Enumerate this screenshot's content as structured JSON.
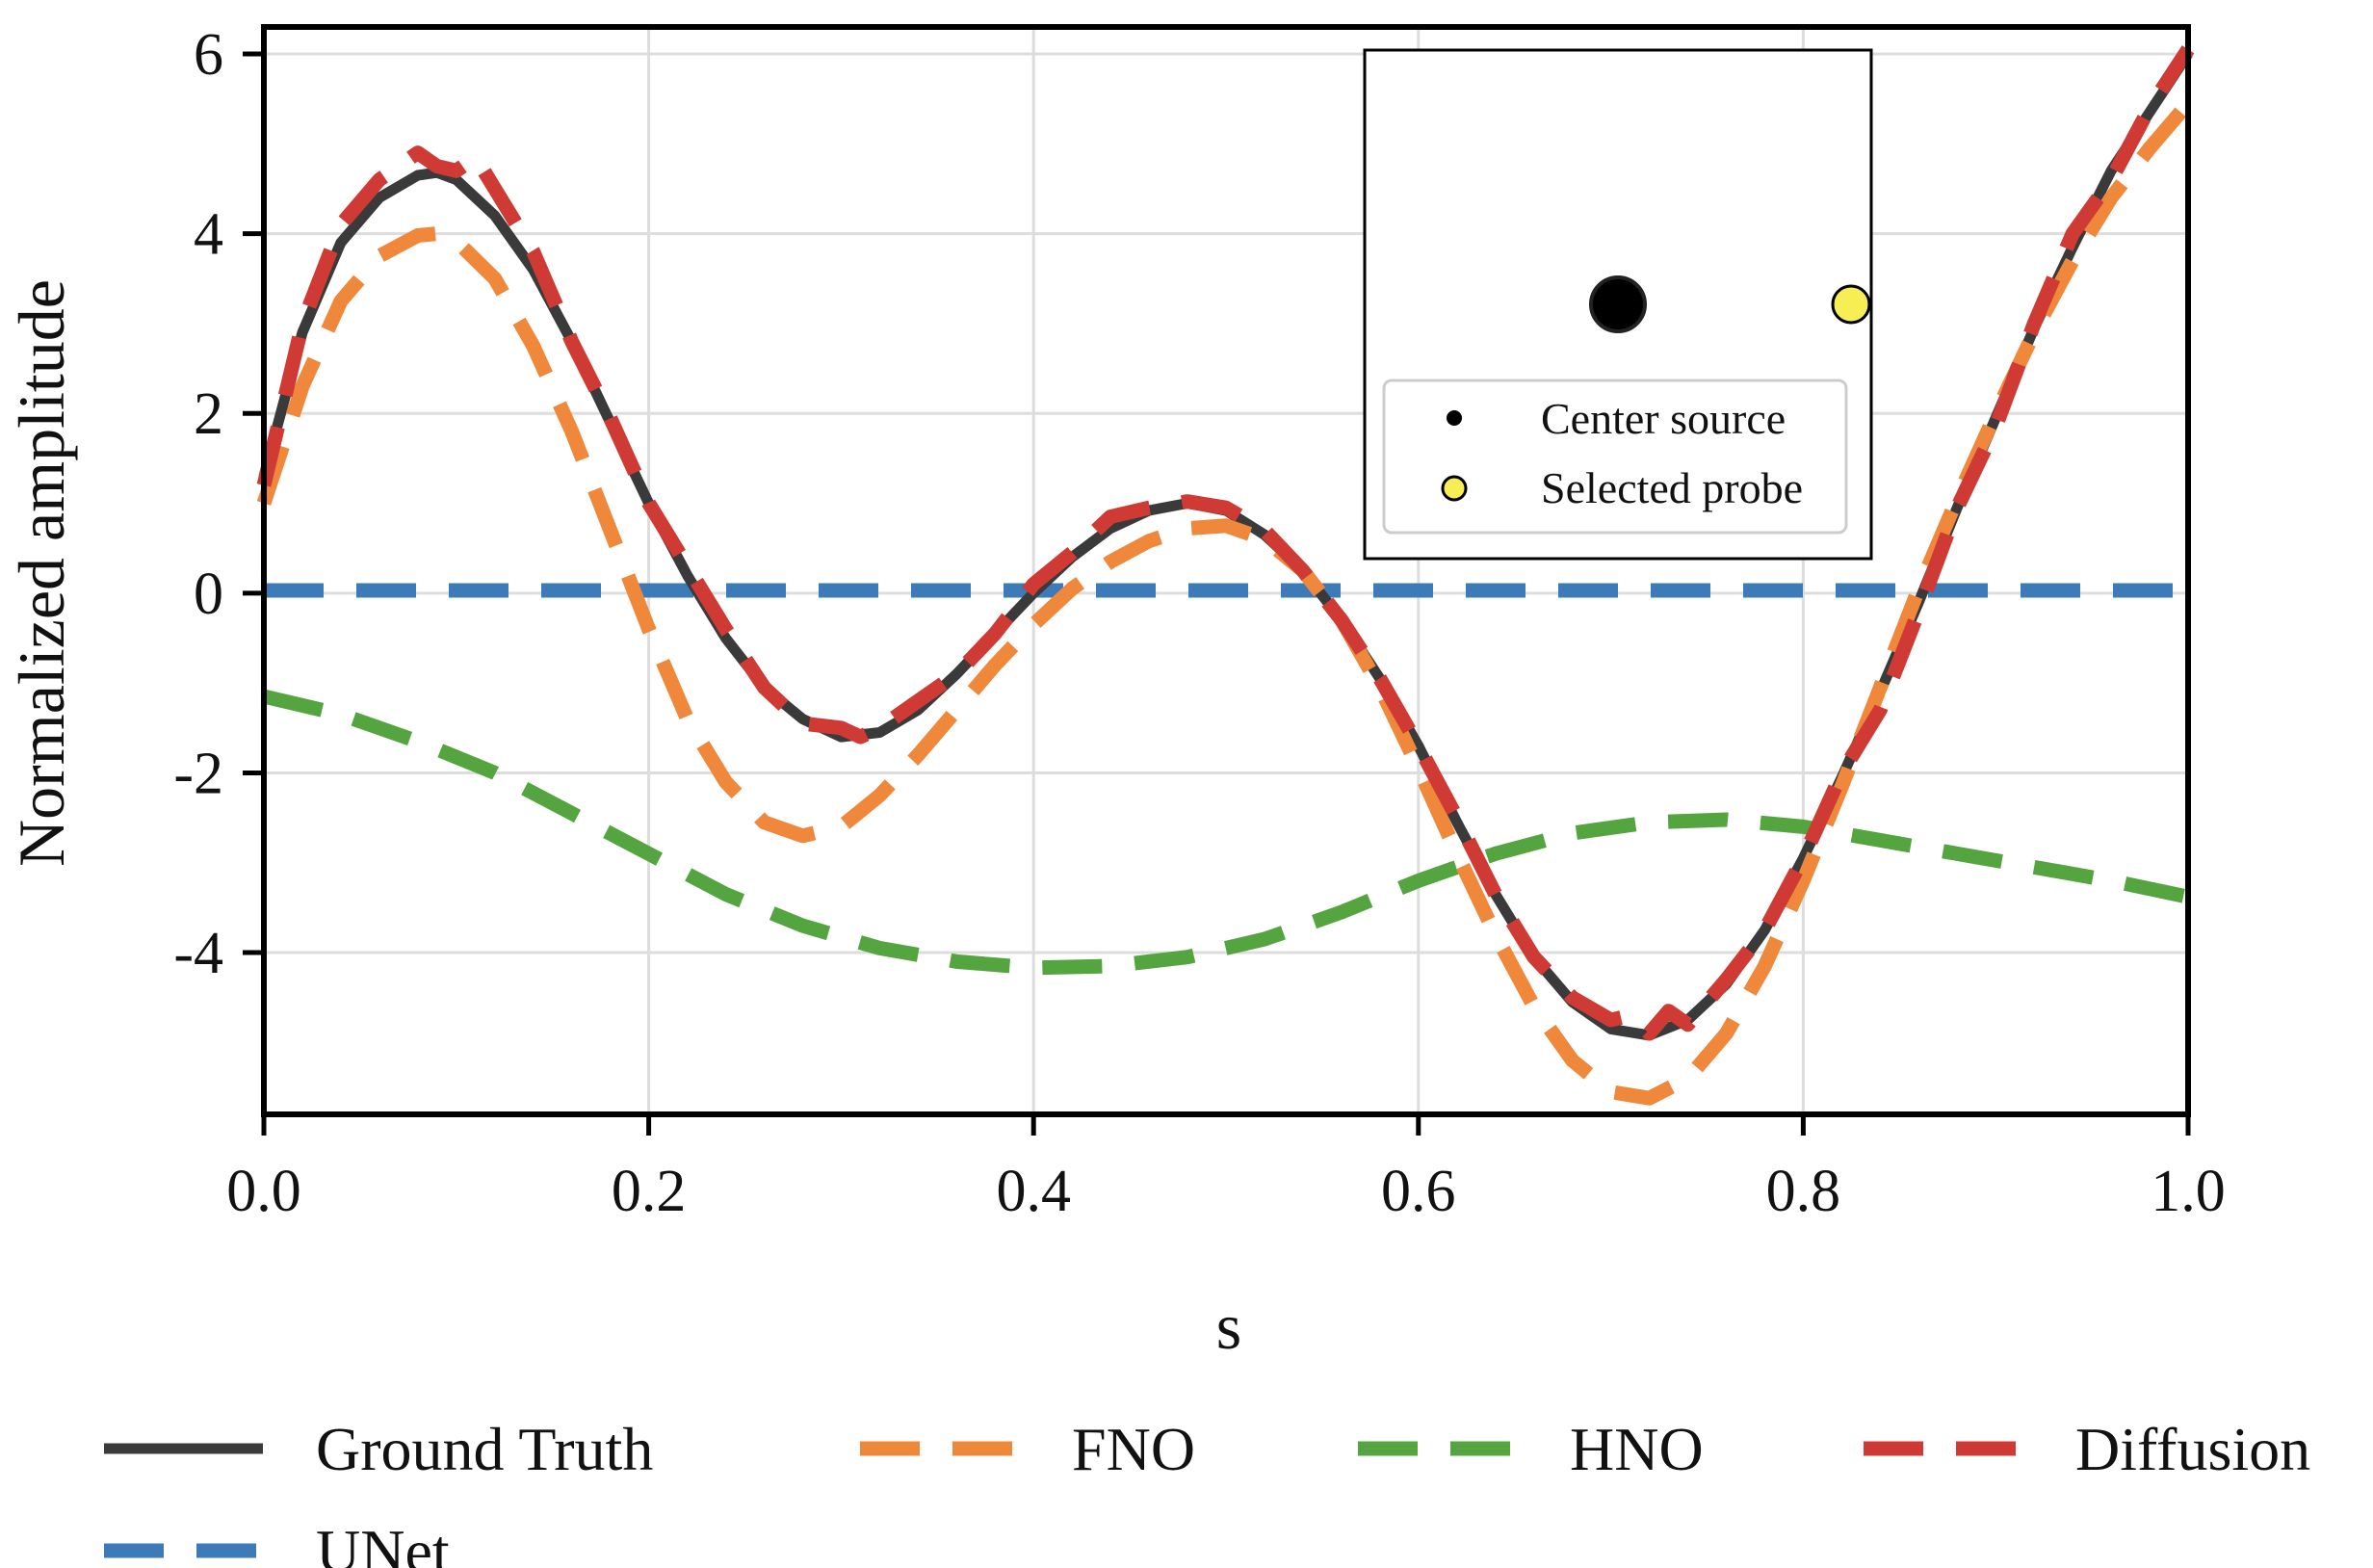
{
  "chart_data": {
    "type": "line",
    "title": "",
    "xlabel": "s",
    "ylabel": "Normalized amplitude",
    "xlim": [
      0.0,
      1.0
    ],
    "ylim": [
      -5.8,
      6.3
    ],
    "xticks": [
      0.0,
      0.2,
      0.4,
      0.6,
      0.8,
      1.0
    ],
    "xtick_labels": [
      "0.0",
      "0.2",
      "0.4",
      "0.6",
      "0.8",
      "1.0"
    ],
    "yticks": [
      -4,
      -2,
      0,
      2,
      4,
      6
    ],
    "ytick_labels": [
      "-4",
      "-2",
      "0",
      "2",
      "4",
      "6"
    ],
    "grid": true,
    "legend_position": "bottom",
    "series": [
      {
        "name": "Ground Truth",
        "color": "#3a3a3a",
        "style": "solid",
        "x": [
          0.0,
          0.02,
          0.04,
          0.06,
          0.08,
          0.09,
          0.1,
          0.12,
          0.14,
          0.16,
          0.18,
          0.2,
          0.22,
          0.24,
          0.26,
          0.28,
          0.3,
          0.32,
          0.34,
          0.36,
          0.38,
          0.4,
          0.42,
          0.44,
          0.46,
          0.48,
          0.5,
          0.52,
          0.54,
          0.56,
          0.58,
          0.6,
          0.62,
          0.64,
          0.66,
          0.68,
          0.7,
          0.72,
          0.74,
          0.76,
          0.78,
          0.8,
          0.82,
          0.84,
          0.86,
          0.88,
          0.9,
          0.92,
          0.94,
          0.96,
          0.98,
          1.0
        ],
        "values": [
          1.3,
          2.9,
          3.9,
          4.4,
          4.65,
          4.68,
          4.6,
          4.2,
          3.6,
          2.8,
          1.9,
          1.0,
          0.2,
          -0.5,
          -1.05,
          -1.4,
          -1.6,
          -1.55,
          -1.3,
          -0.9,
          -0.45,
          0.0,
          0.4,
          0.72,
          0.92,
          1.0,
          0.92,
          0.65,
          0.25,
          -0.3,
          -0.95,
          -1.7,
          -2.55,
          -3.35,
          -4.05,
          -4.55,
          -4.85,
          -4.92,
          -4.75,
          -4.35,
          -3.75,
          -2.95,
          -2.05,
          -1.1,
          -0.1,
          0.95,
          1.95,
          2.95,
          3.85,
          4.7,
          5.35,
          6.0
        ]
      },
      {
        "name": "FNO",
        "color": "#f0883c",
        "style": "dashed",
        "x": [
          0.0,
          0.02,
          0.04,
          0.06,
          0.08,
          0.09,
          0.1,
          0.12,
          0.14,
          0.16,
          0.18,
          0.2,
          0.22,
          0.24,
          0.26,
          0.28,
          0.3,
          0.32,
          0.34,
          0.36,
          0.38,
          0.4,
          0.42,
          0.44,
          0.46,
          0.48,
          0.5,
          0.52,
          0.54,
          0.56,
          0.58,
          0.6,
          0.62,
          0.64,
          0.66,
          0.68,
          0.7,
          0.72,
          0.74,
          0.76,
          0.78,
          0.8,
          0.82,
          0.84,
          0.86,
          0.88,
          0.9,
          0.92,
          0.94,
          0.96,
          0.98,
          1.0
        ],
        "values": [
          1.0,
          2.3,
          3.25,
          3.75,
          3.98,
          4.0,
          3.92,
          3.5,
          2.75,
          1.8,
          0.7,
          -0.4,
          -1.4,
          -2.1,
          -2.55,
          -2.7,
          -2.6,
          -2.25,
          -1.8,
          -1.3,
          -0.8,
          -0.35,
          0.05,
          0.35,
          0.58,
          0.72,
          0.75,
          0.6,
          0.25,
          -0.3,
          -1.05,
          -1.95,
          -2.9,
          -3.8,
          -4.6,
          -5.2,
          -5.55,
          -5.62,
          -5.4,
          -4.9,
          -4.15,
          -3.2,
          -2.15,
          -1.05,
          0.05,
          1.05,
          2.0,
          2.9,
          3.7,
          4.4,
          4.95,
          5.45
        ]
      },
      {
        "name": "HNO",
        "color": "#54a540",
        "style": "dashed",
        "x": [
          0.0,
          0.04,
          0.08,
          0.12,
          0.16,
          0.2,
          0.24,
          0.28,
          0.32,
          0.36,
          0.4,
          0.44,
          0.48,
          0.52,
          0.56,
          0.6,
          0.64,
          0.68,
          0.72,
          0.76,
          0.8,
          0.84,
          0.88,
          0.92,
          0.96,
          1.0
        ],
        "values": [
          -1.15,
          -1.35,
          -1.65,
          -2.0,
          -2.45,
          -2.9,
          -3.35,
          -3.7,
          -3.95,
          -4.1,
          -4.17,
          -4.15,
          -4.05,
          -3.85,
          -3.55,
          -3.2,
          -2.9,
          -2.67,
          -2.55,
          -2.52,
          -2.6,
          -2.75,
          -2.9,
          -3.05,
          -3.2,
          -3.38
        ]
      },
      {
        "name": "Diffusion",
        "color": "#cf3b34",
        "style": "dashed",
        "x": [
          0.0,
          0.02,
          0.04,
          0.06,
          0.08,
          0.09,
          0.1,
          0.11,
          0.12,
          0.14,
          0.16,
          0.18,
          0.2,
          0.22,
          0.24,
          0.26,
          0.28,
          0.3,
          0.31,
          0.32,
          0.34,
          0.36,
          0.38,
          0.4,
          0.42,
          0.44,
          0.46,
          0.48,
          0.5,
          0.52,
          0.54,
          0.56,
          0.58,
          0.6,
          0.62,
          0.64,
          0.66,
          0.68,
          0.7,
          0.71,
          0.72,
          0.73,
          0.74,
          0.76,
          0.78,
          0.8,
          0.82,
          0.84,
          0.86,
          0.88,
          0.9,
          0.92,
          0.94,
          0.96,
          0.98,
          1.0
        ],
        "values": [
          1.2,
          3.0,
          4.1,
          4.6,
          4.9,
          4.75,
          4.7,
          4.85,
          4.5,
          3.8,
          2.8,
          1.95,
          1.0,
          0.3,
          -0.4,
          -1.05,
          -1.45,
          -1.5,
          -1.6,
          -1.5,
          -1.2,
          -0.9,
          -0.45,
          0.1,
          0.45,
          0.85,
          0.95,
          1.02,
          0.95,
          0.7,
          0.25,
          -0.3,
          -0.95,
          -1.7,
          -2.5,
          -3.35,
          -4.05,
          -4.5,
          -4.75,
          -4.7,
          -4.9,
          -4.65,
          -4.8,
          -4.3,
          -3.75,
          -2.95,
          -2.0,
          -1.3,
          -0.2,
          0.95,
          1.85,
          3.0,
          4.0,
          4.6,
          5.4,
          6.05
        ]
      },
      {
        "name": "UNet",
        "color": "#3d7ab8",
        "style": "dashed",
        "x": [
          0.0,
          1.0
        ],
        "values": [
          0.03,
          0.03
        ]
      }
    ],
    "inset": {
      "legend": [
        {
          "label": "Center source",
          "color": "#000000"
        },
        {
          "label": "Selected probe",
          "color": "#f7ee55"
        }
      ]
    }
  }
}
